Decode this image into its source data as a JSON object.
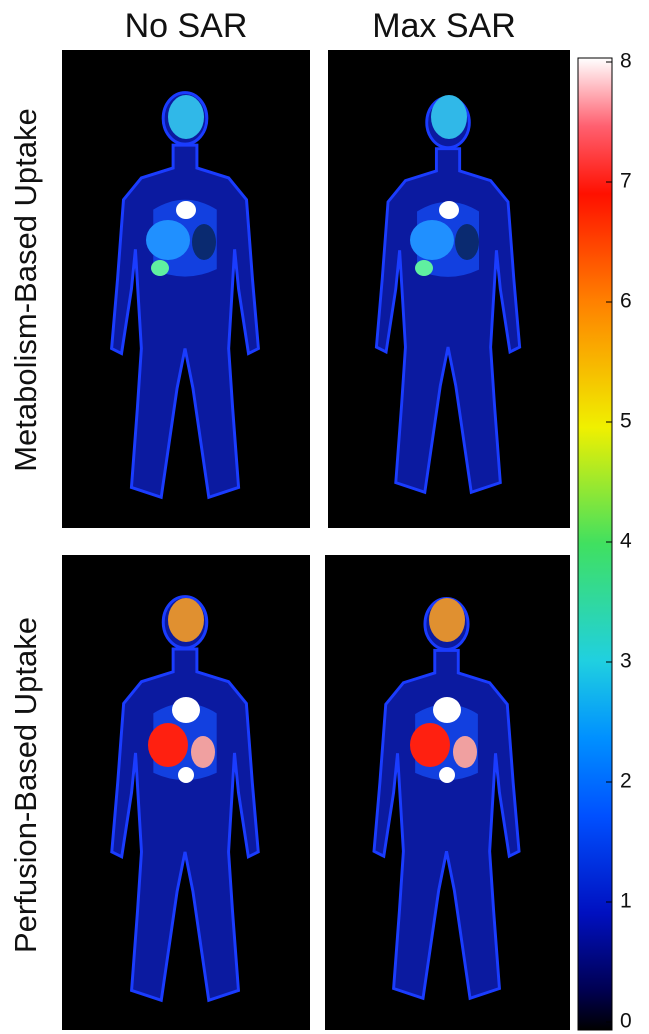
{
  "columns": [
    "No SAR",
    "Max SAR"
  ],
  "rows": [
    "Metabolism-Based Uptake",
    "Perfusion-Based Uptake"
  ],
  "colorbar": {
    "lim": [
      0,
      8
    ],
    "ticks": [
      0,
      1,
      2,
      3,
      4,
      5,
      6,
      7,
      8
    ]
  }
}
